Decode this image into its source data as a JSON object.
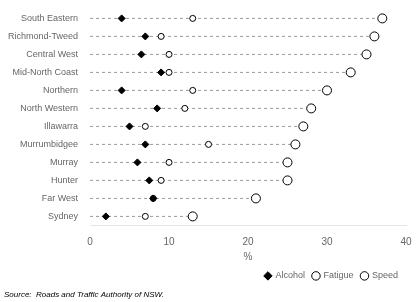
{
  "chart_data": {
    "type": "dot",
    "orientation": "horizontal",
    "categories": [
      "South Eastern",
      "Richmond-Tweed",
      "Central West",
      "Mid-North Coast",
      "Northern",
      "North Western",
      "Illawarra",
      "Murrumbidgee",
      "Murray",
      "Hunter",
      "Far West",
      "Sydney"
    ],
    "series": [
      {
        "name": "Alcohol",
        "color": "#000000",
        "marker": "diamond",
        "values": [
          4,
          7,
          6.5,
          9,
          4,
          8.5,
          5,
          7,
          6,
          7.5,
          8,
          2
        ]
      },
      {
        "name": "Fatigue",
        "color": "#000000",
        "marker": "open_circle",
        "values": [
          13,
          9,
          10,
          10,
          13,
          12,
          7,
          15,
          10,
          9,
          8,
          7
        ]
      },
      {
        "name": "Speed",
        "color": "#000000",
        "marker": "large_open_circle",
        "values": [
          37,
          36,
          35,
          33,
          30,
          28,
          27,
          26,
          25,
          25,
          21,
          13
        ]
      }
    ],
    "xlim": [
      0,
      40
    ],
    "xticks": [
      0,
      10,
      20,
      30,
      40
    ],
    "xlabel": "%",
    "annotation": "Source:  Roads and Traffic Authority of NSW.",
    "grid": false,
    "legend": "lower right"
  }
}
